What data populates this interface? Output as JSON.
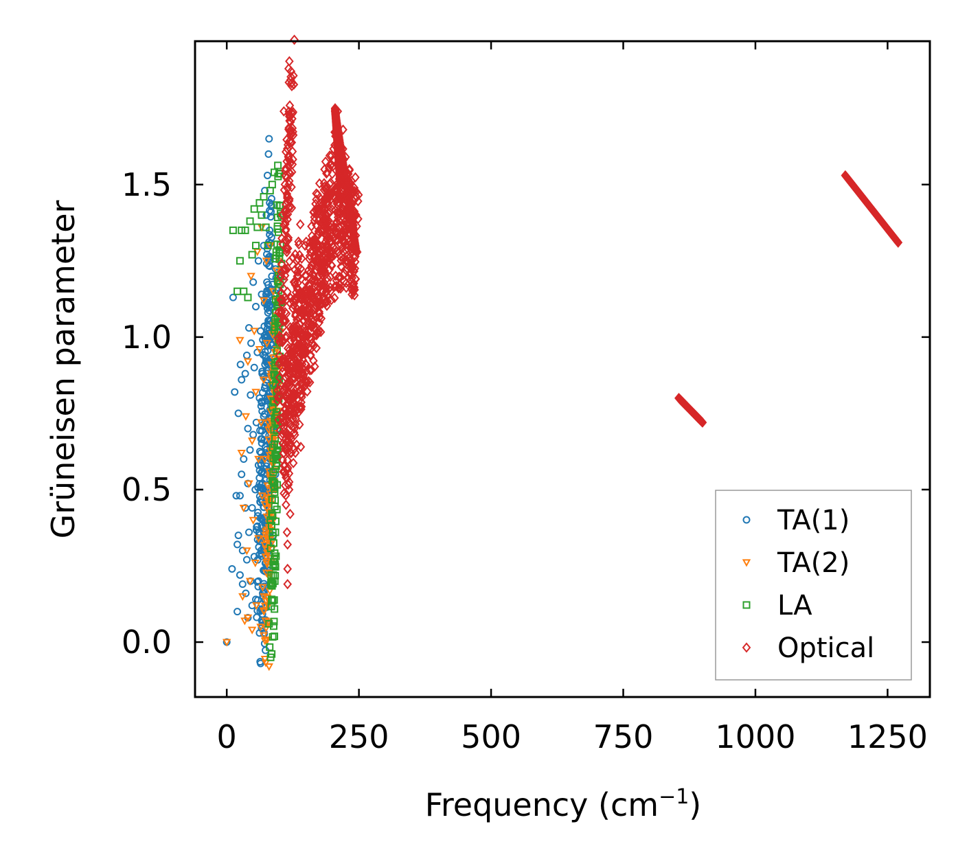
{
  "chart_data": {
    "type": "scatter",
    "title": "",
    "xlabel": "Frequency (cm",
    "xlabel_sup": "−1",
    "xlabel_tail": ")",
    "ylabel": "Grüneisen parameter",
    "xlim": [
      -60,
      1330
    ],
    "ylim": [
      -0.18,
      1.97
    ],
    "xticks": [
      0,
      250,
      500,
      750,
      1000,
      1250
    ],
    "xtick_labels": [
      "0",
      "250",
      "500",
      "750",
      "1000",
      "1250"
    ],
    "yticks": [
      0.0,
      0.5,
      1.0,
      1.5
    ],
    "ytick_labels": [
      "0.0",
      "0.5",
      "1.0",
      "1.5"
    ],
    "grid": false,
    "legend_position": "bottom-right",
    "series": [
      {
        "name": "TA(1)",
        "marker": "circle",
        "color": "#1f77b4",
        "points": [
          [
            0,
            0
          ],
          [
            10,
            0.24
          ],
          [
            12,
            1.13
          ],
          [
            15,
            0.82
          ],
          [
            18,
            0.48
          ],
          [
            20,
            0.32
          ],
          [
            20,
            0.1
          ],
          [
            22,
            0.35
          ],
          [
            22,
            0.75
          ],
          [
            25,
            0.48
          ],
          [
            25,
            0.22
          ],
          [
            26,
            0.91
          ],
          [
            28,
            0.55
          ],
          [
            28,
            0.86
          ],
          [
            30,
            0.19
          ],
          [
            30,
            0.3
          ],
          [
            32,
            0.6
          ],
          [
            35,
            0.44
          ],
          [
            35,
            0.88
          ],
          [
            36,
            0.16
          ],
          [
            38,
            0.27
          ],
          [
            38,
            0.94
          ],
          [
            40,
            0.52
          ],
          [
            40,
            0.08
          ],
          [
            40,
            0.7
          ],
          [
            42,
            1.03
          ],
          [
            42,
            0.36
          ],
          [
            44,
            0.63
          ],
          [
            45,
            0.2
          ],
          [
            45,
            0.81
          ],
          [
            46,
            0.98
          ],
          [
            48,
            0.44
          ],
          [
            48,
            0.12
          ],
          [
            50,
            0.68
          ],
          [
            50,
            1.18
          ],
          [
            52,
            0.28
          ],
          [
            52,
            0.9
          ],
          [
            54,
            0.5
          ],
          [
            55,
            1.1
          ],
          [
            55,
            0.14
          ],
          [
            56,
            0.72
          ],
          [
            58,
            0.38
          ],
          [
            58,
            0.95
          ],
          [
            60,
            0.58
          ],
          [
            60,
            0.2
          ],
          [
            60,
            1.25
          ],
          [
            62,
            0.03
          ],
          [
            62,
            0.8
          ],
          [
            63,
            0.46
          ],
          [
            64,
            -0.07
          ],
          [
            64,
            1.02
          ],
          [
            65,
            0.62
          ],
          [
            65,
            0.3
          ],
          [
            66,
            1.14
          ],
          [
            67,
            0.88
          ],
          [
            68,
            0.52
          ],
          [
            68,
            0.16
          ],
          [
            70,
            1.3
          ],
          [
            70,
            0.74
          ],
          [
            70,
            0.4
          ],
          [
            72,
            1.48
          ],
          [
            72,
            0.98
          ],
          [
            73,
            0.64
          ],
          [
            74,
            0.28
          ],
          [
            75,
            1.4
          ],
          [
            75,
            0.85
          ],
          [
            76,
            1.18
          ],
          [
            76,
            0.55
          ],
          [
            77,
            1.53
          ],
          [
            78,
            0.7
          ],
          [
            78,
            1.08
          ],
          [
            79,
            1.6
          ],
          [
            80,
            0.92
          ],
          [
            80,
            1.65
          ],
          [
            80,
            0.42
          ],
          [
            81,
            1.35
          ],
          [
            82,
            0.6
          ],
          [
            82,
            1.25
          ],
          [
            83,
            0.8
          ],
          [
            84,
            1.0
          ],
          [
            85,
            0.5
          ],
          [
            86,
            1.12
          ],
          [
            87,
            0.75
          ],
          [
            88,
            0.35
          ],
          [
            89,
            0.9
          ],
          [
            90,
            0.65
          ],
          [
            90,
            1.05
          ],
          [
            92,
            0.55
          ],
          [
            94,
            0.85
          ],
          [
            96,
            0.7
          ]
        ],
        "range_pairs": [
          [
            60,
            0.18,
            82,
            1.35
          ],
          [
            68,
            0.1,
            92,
            1.1
          ]
        ]
      },
      {
        "name": "TA(2)",
        "marker": "triangle-down",
        "color": "#ff7f0e",
        "points": [
          [
            0,
            0
          ],
          [
            25,
            0.99
          ],
          [
            28,
            0.62
          ],
          [
            30,
            0.15
          ],
          [
            32,
            0.44
          ],
          [
            34,
            0.07
          ],
          [
            36,
            0.74
          ],
          [
            38,
            0.3
          ],
          [
            40,
            0.08
          ],
          [
            40,
            0.92
          ],
          [
            42,
            0.52
          ],
          [
            44,
            0.2
          ],
          [
            46,
            1.2
          ],
          [
            48,
            0.66
          ],
          [
            48,
            0.04
          ],
          [
            50,
            0.4
          ],
          [
            52,
            1.02
          ],
          [
            54,
            0.26
          ],
          [
            55,
            0.82
          ],
          [
            56,
            0.12
          ],
          [
            58,
            1.28
          ],
          [
            60,
            0.6
          ],
          [
            60,
            0.34
          ],
          [
            62,
            0.96
          ],
          [
            64,
            0.05
          ],
          [
            65,
            0.72
          ],
          [
            66,
            1.36
          ],
          [
            67,
            0.48
          ],
          [
            68,
            0.18
          ],
          [
            70,
            1.12
          ],
          [
            70,
            0.86
          ],
          [
            72,
            0.6
          ],
          [
            74,
            0.28
          ],
          [
            75,
            1.25
          ],
          [
            76,
            0.98
          ],
          [
            78,
            0.72
          ],
          [
            80,
            0.45
          ],
          [
            80,
            -0.08
          ],
          [
            82,
            1.3
          ],
          [
            84,
            0.88
          ],
          [
            85,
            0.6
          ],
          [
            86,
            0.2
          ],
          [
            88,
            1.15
          ],
          [
            88,
            0.4
          ],
          [
            90,
            0.78
          ],
          [
            92,
            0.5
          ],
          [
            94,
            1.05
          ]
        ],
        "range_pairs": [
          [
            72,
            0.1,
            98,
            1.1
          ]
        ]
      },
      {
        "name": "LA",
        "marker": "square",
        "color": "#2ca02c",
        "points": [
          [
            12,
            1.35
          ],
          [
            20,
            1.15
          ],
          [
            25,
            1.25
          ],
          [
            28,
            1.35
          ],
          [
            32,
            1.15
          ],
          [
            35,
            1.35
          ],
          [
            40,
            1.13
          ],
          [
            44,
            1.38
          ],
          [
            48,
            1.27
          ],
          [
            52,
            1.42
          ],
          [
            55,
            1.3
          ],
          [
            58,
            1.36
          ],
          [
            62,
            1.44
          ],
          [
            66,
            1.4
          ],
          [
            70,
            1.46
          ],
          [
            74,
            1.36
          ],
          [
            78,
            1.3
          ],
          [
            80,
            0.06
          ],
          [
            82,
            1.48
          ],
          [
            83,
            -0.05
          ],
          [
            85,
            0.14
          ],
          [
            86,
            1.5
          ],
          [
            88,
            0.22
          ],
          [
            90,
            1.54
          ],
          [
            92,
            0.36
          ],
          [
            94,
            0.6
          ]
        ],
        "range_pairs": [
          [
            86,
            0.1,
            100,
            1.45
          ]
        ]
      },
      {
        "name": "Optical",
        "marker": "diamond",
        "color": "#d62728",
        "points": [
          [
            105,
            0.9
          ],
          [
            108,
            1.74
          ],
          [
            112,
            0.54
          ],
          [
            112,
            0.45
          ],
          [
            114,
            0.36
          ],
          [
            115,
            0.19
          ],
          [
            115,
            0.24
          ],
          [
            115,
            0.32
          ],
          [
            117,
            1.88
          ],
          [
            118,
            0.5
          ],
          [
            120,
            0.42
          ],
          [
            122,
            0.62
          ],
          [
            125,
            1.26
          ],
          [
            128,
            0.7
          ],
          [
            130,
            1.12
          ],
          [
            140,
            0.64
          ],
          [
            150,
            0.98
          ],
          [
            160,
            1.15
          ],
          [
            170,
            1.3
          ],
          [
            180,
            1.42
          ],
          [
            190,
            1.38
          ],
          [
            200,
            1.28
          ],
          [
            210,
            1.74
          ],
          [
            220,
            1.68
          ],
          [
            230,
            1.45
          ],
          [
            240,
            1.3
          ],
          [
            1270,
            1.31
          ]
        ],
        "range_pairs": [
          [
            100,
            0.85,
            125,
            1.86
          ],
          [
            102,
            0.6,
            140,
            1.2
          ],
          [
            110,
            0.66,
            150,
            1.05
          ],
          [
            140,
            0.9,
            190,
            1.3
          ],
          [
            150,
            1.15,
            200,
            1.45
          ],
          [
            180,
            1.27,
            245,
            1.35
          ],
          [
            205,
            1.5,
            245,
            1.3
          ]
        ],
        "segments": [
          [
            205,
            1.74,
            245,
            1.28
          ],
          [
            205,
            1.75,
            215,
            1.5
          ],
          [
            855,
            0.8,
            900,
            0.72
          ],
          [
            1170,
            1.53,
            1270,
            1.31
          ]
        ]
      }
    ]
  }
}
